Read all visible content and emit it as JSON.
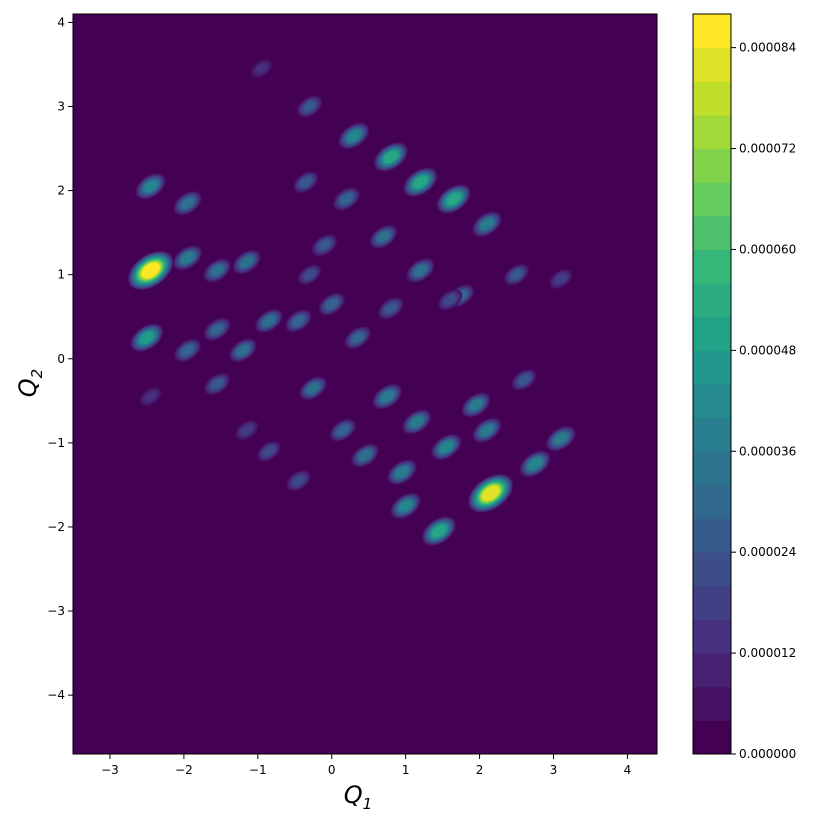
{
  "chart_data": {
    "type": "heatmap",
    "subtype": "filled-contour",
    "title": "",
    "xlabel": "Q",
    "xlabel_sub": "1",
    "ylabel": "Q",
    "ylabel_sub": "2",
    "xlim": [
      -3.5,
      4.4
    ],
    "ylim": [
      -4.7,
      4.1
    ],
    "xticks": [
      -3,
      -2,
      -1,
      0,
      1,
      2,
      3,
      4
    ],
    "xtick_labels": [
      "−3",
      "−2",
      "−1",
      "0",
      "1",
      "2",
      "3",
      "4"
    ],
    "yticks": [
      4,
      3,
      2,
      1,
      0,
      -1,
      -2,
      -3,
      -4
    ],
    "ytick_labels": [
      "4",
      "3",
      "2",
      "1",
      "0",
      "−1",
      "−2",
      "−3",
      "−4"
    ],
    "grid": false,
    "colormap": "viridis",
    "colorbar": {
      "range": [
        0,
        8.8e-05
      ],
      "levels": 22,
      "ticks": [
        0,
        1.2e-05,
        2.4e-05,
        3.6e-05,
        4.8e-05,
        6e-05,
        7.2e-05,
        8.4e-05
      ],
      "tick_labels": [
        "0.000000",
        "0.000012",
        "0.000024",
        "0.000036",
        "0.000048",
        "0.000060",
        "0.000072",
        "0.000084"
      ]
    },
    "colors": {
      "background": "#440154",
      "peak": "#fde725"
    },
    "peaks": [
      {
        "x": -2.45,
        "y": 1.05,
        "value": 8.6e-05
      },
      {
        "x": -2.5,
        "y": 0.25,
        "value": 4.6e-05
      },
      {
        "x": -2.45,
        "y": 2.05,
        "value": 3.8e-05
      },
      {
        "x": -2.45,
        "y": -0.45,
        "value": 1.2e-05
      },
      {
        "x": -1.95,
        "y": 1.85,
        "value": 3.2e-05
      },
      {
        "x": -1.95,
        "y": 1.2,
        "value": 3.4e-05
      },
      {
        "x": -1.95,
        "y": 0.1,
        "value": 2.8e-05
      },
      {
        "x": -1.55,
        "y": 1.05,
        "value": 3e-05
      },
      {
        "x": -1.55,
        "y": 0.35,
        "value": 2.8e-05
      },
      {
        "x": -1.55,
        "y": -0.3,
        "value": 2.4e-05
      },
      {
        "x": -1.15,
        "y": 1.15,
        "value": 3.2e-05
      },
      {
        "x": -1.2,
        "y": 0.1,
        "value": 3e-05
      },
      {
        "x": -1.15,
        "y": -0.85,
        "value": 1.6e-05
      },
      {
        "x": -0.85,
        "y": 0.45,
        "value": 3e-05
      },
      {
        "x": -0.85,
        "y": -1.1,
        "value": 1.8e-05
      },
      {
        "x": -0.45,
        "y": 0.45,
        "value": 2.6e-05
      },
      {
        "x": -0.45,
        "y": -1.45,
        "value": 2e-05
      },
      {
        "x": -0.25,
        "y": -0.35,
        "value": 3e-05
      },
      {
        "x": 0.0,
        "y": 0.65,
        "value": 2.6e-05
      },
      {
        "x": 0.15,
        "y": -0.85,
        "value": 2.6e-05
      },
      {
        "x": 0.35,
        "y": 0.25,
        "value": 2.6e-05
      },
      {
        "x": 0.45,
        "y": -1.15,
        "value": 3e-05
      },
      {
        "x": 0.75,
        "y": -0.45,
        "value": 3.6e-05
      },
      {
        "x": 0.95,
        "y": -1.35,
        "value": 3.6e-05
      },
      {
        "x": 1.15,
        "y": -0.75,
        "value": 3.4e-05
      },
      {
        "x": 1.0,
        "y": -1.75,
        "value": 3.8e-05
      },
      {
        "x": 1.45,
        "y": -2.05,
        "value": 5e-05
      },
      {
        "x": 1.55,
        "y": -1.05,
        "value": 3.8e-05
      },
      {
        "x": 1.95,
        "y": -0.55,
        "value": 3.4e-05
      },
      {
        "x": 2.15,
        "y": -1.6,
        "value": 8.4e-05
      },
      {
        "x": 2.1,
        "y": -0.85,
        "value": 3.4e-05
      },
      {
        "x": 2.6,
        "y": -0.25,
        "value": 2.2e-05
      },
      {
        "x": 2.75,
        "y": -1.25,
        "value": 4e-05
      },
      {
        "x": 3.1,
        "y": -0.95,
        "value": 3.6e-05
      },
      {
        "x": 0.3,
        "y": 2.65,
        "value": 4e-05
      },
      {
        "x": 0.8,
        "y": 2.4,
        "value": 5e-05
      },
      {
        "x": 1.2,
        "y": 2.1,
        "value": 5e-05
      },
      {
        "x": 1.65,
        "y": 1.9,
        "value": 5e-05
      },
      {
        "x": 2.1,
        "y": 1.6,
        "value": 3.6e-05
      },
      {
        "x": -0.3,
        "y": 3.0,
        "value": 2.4e-05
      },
      {
        "x": 0.2,
        "y": 1.9,
        "value": 2.8e-05
      },
      {
        "x": 0.7,
        "y": 1.45,
        "value": 3e-05
      },
      {
        "x": 1.2,
        "y": 1.05,
        "value": 3.2e-05
      },
      {
        "x": 1.75,
        "y": 0.75,
        "value": 2.6e-05
      },
      {
        "x": -0.1,
        "y": 1.35,
        "value": 2.4e-05
      },
      {
        "x": 0.8,
        "y": 0.6,
        "value": 2.4e-05
      },
      {
        "x": 2.5,
        "y": 1.0,
        "value": 2.2e-05
      },
      {
        "x": 3.1,
        "y": 0.95,
        "value": 1.6e-05
      },
      {
        "x": -0.95,
        "y": 3.45,
        "value": 1e-05
      },
      {
        "x": -0.35,
        "y": 2.1,
        "value": 2.2e-05
      },
      {
        "x": -0.3,
        "y": 1.0,
        "value": 1.8e-05
      },
      {
        "x": 1.6,
        "y": 0.7,
        "value": 2e-05
      }
    ]
  }
}
